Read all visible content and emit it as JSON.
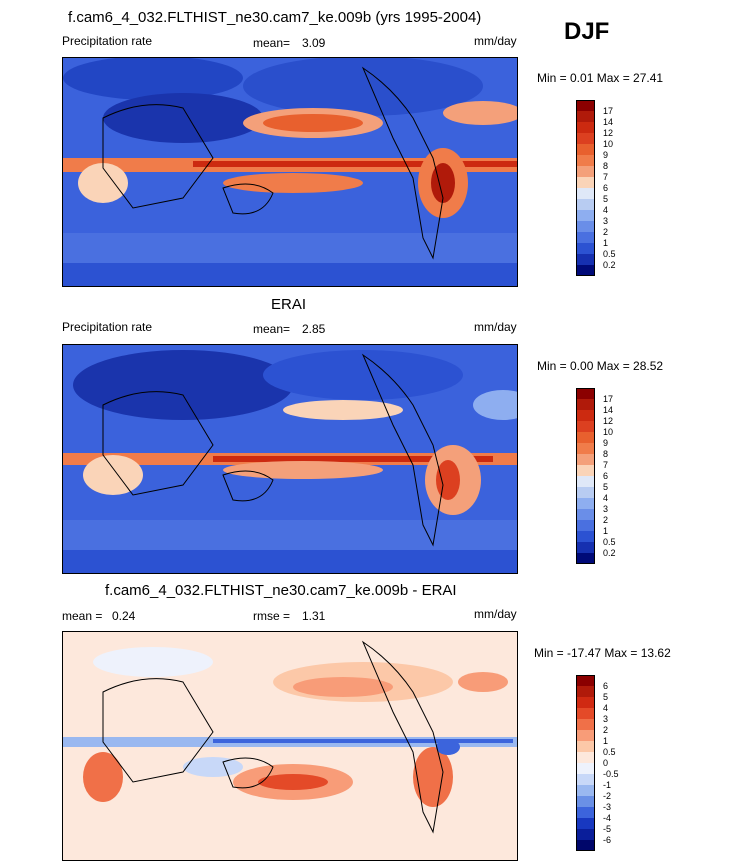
{
  "season": "DJF",
  "panels": [
    {
      "id": "model",
      "title": "f.cam6_4_032.FLTHIST_ne30.cam7_ke.009b (yrs 1995-2004)",
      "left_label": "Precipitation rate",
      "stat_label": "mean=",
      "stat_value": "3.09",
      "units": "mm/day",
      "minmax": "Min =   0.01 Max =  27.41",
      "colorbar_labels": [
        "17",
        "14",
        "12",
        "10",
        "9",
        "8",
        "7",
        "6",
        "5",
        "4",
        "3",
        "2",
        "1",
        "0.5",
        "0.2"
      ],
      "colorbar_colors": [
        "#8b0000",
        "#b01a0a",
        "#cc2a10",
        "#dc4020",
        "#e8602e",
        "#f07c4a",
        "#f4a07a",
        "#fad4b8",
        "#dfe8f8",
        "#b8ccf2",
        "#8eaef0",
        "#6a8ee8",
        "#4a70e0",
        "#2c52d2",
        "#1630b0",
        "#000a78"
      ]
    },
    {
      "id": "obs",
      "title": "ERAI",
      "left_label": "Precipitation rate",
      "stat_label": "mean=",
      "stat_value": "2.85",
      "units": "mm/day",
      "minmax": "Min =   0.00 Max =  28.52",
      "colorbar_labels": [
        "17",
        "14",
        "12",
        "10",
        "9",
        "8",
        "7",
        "6",
        "5",
        "4",
        "3",
        "2",
        "1",
        "0.5",
        "0.2"
      ],
      "colorbar_colors": [
        "#8b0000",
        "#b01a0a",
        "#cc2a10",
        "#dc4020",
        "#e8602e",
        "#f07c4a",
        "#f4a07a",
        "#fad4b8",
        "#dfe8f8",
        "#b8ccf2",
        "#8eaef0",
        "#6a8ee8",
        "#4a70e0",
        "#2c52d2",
        "#1630b0",
        "#000a78"
      ]
    },
    {
      "id": "diff",
      "title": "f.cam6_4_032.FLTHIST_ne30.cam7_ke.009b - ERAI",
      "left_label": "mean =",
      "left_value": "0.24",
      "stat_label": "rmse =",
      "stat_value": "1.31",
      "units": "mm/day",
      "minmax": "Min = -17.47 Max =  13.62",
      "colorbar_labels": [
        "6",
        "5",
        "4",
        "3",
        "2",
        "1",
        "0.5",
        "0",
        "-0.5",
        "-1",
        "-2",
        "-3",
        "-4",
        "-5",
        "-6"
      ],
      "colorbar_colors": [
        "#8b0000",
        "#b01a0a",
        "#d02a12",
        "#e44a28",
        "#f07048",
        "#f89c78",
        "#fcc8a8",
        "#fde8dc",
        "#eef2fc",
        "#c8d8f8",
        "#9ab8f0",
        "#6a90e6",
        "#3c64dc",
        "#1838c0",
        "#0a1e9a",
        "#00066a"
      ]
    }
  ]
}
